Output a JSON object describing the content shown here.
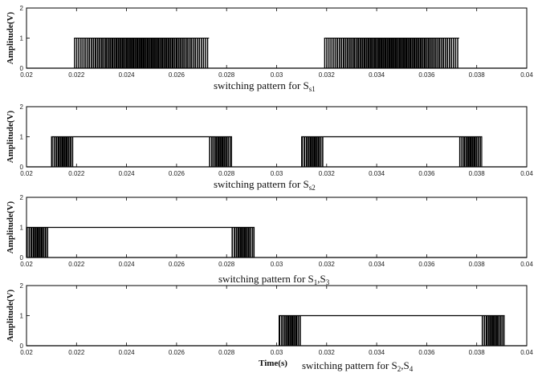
{
  "chart_data": [
    {
      "type": "line",
      "ylabel": "Amplitude(V)",
      "caption_main": "switching pattern for S",
      "caption_sub": "s1",
      "xlim": [
        0.02,
        0.04
      ],
      "ylim": [
        0,
        2
      ],
      "xticks": [
        "0.02",
        "0.022",
        "0.024",
        "0.026",
        "0.028",
        "0.03",
        "0.032",
        "0.034",
        "0.036",
        "0.038",
        "0.04"
      ],
      "yticks": [
        "0",
        "1",
        "2"
      ],
      "pulse_blocks": [
        [
          0.0219,
          0.0273
        ],
        [
          0.0319,
          0.0373
        ]
      ],
      "sustained_high": [],
      "high_level": 1
    },
    {
      "type": "line",
      "ylabel": "Amplitude(V)",
      "caption_main": "switching pattern for S",
      "caption_sub": "s2",
      "xlim": [
        0.02,
        0.04
      ],
      "ylim": [
        0,
        2
      ],
      "xticks": [
        "0.02",
        "0.022",
        "0.024",
        "0.026",
        "0.028",
        "0.03",
        "0.032",
        "0.034",
        "0.036",
        "0.038",
        "0.04"
      ],
      "yticks": [
        "0",
        "1",
        "2"
      ],
      "pulse_blocks": [
        [
          0.021,
          0.0219
        ],
        [
          0.0273,
          0.0282
        ],
        [
          0.031,
          0.0319
        ],
        [
          0.0373,
          0.0382
        ]
      ],
      "sustained_high": [
        [
          0.021,
          0.0282
        ],
        [
          0.031,
          0.0382
        ]
      ],
      "high_level": 1
    },
    {
      "type": "line",
      "ylabel": "Amplitude(V)",
      "caption_main": "switching pattern for S",
      "caption_sub": "1",
      "caption_main2": ",S",
      "caption_sub2": "3",
      "xlim": [
        0.02,
        0.04
      ],
      "ylim": [
        0,
        2
      ],
      "xticks": [
        "0.02",
        "0.022",
        "0.024",
        "0.026",
        "0.028",
        "0.03",
        "0.032",
        "0.034",
        "0.036",
        "0.038",
        "0.04"
      ],
      "yticks": [
        "0",
        "1",
        "2"
      ],
      "pulse_blocks": [
        [
          0.02,
          0.0209
        ],
        [
          0.0282,
          0.0291
        ]
      ],
      "sustained_high": [
        [
          0.02,
          0.0291
        ]
      ],
      "high_level": 1
    },
    {
      "type": "line",
      "ylabel": "Amplitude(V)",
      "xlabel": "Time(s)",
      "caption_main": "switching pattern for S",
      "caption_sub": "2",
      "caption_main2": ",S",
      "caption_sub2": "4",
      "xlim": [
        0.02,
        0.04
      ],
      "ylim": [
        0,
        2
      ],
      "xticks": [
        "0.02",
        "0.022",
        "0.024",
        "0.026",
        "0.028",
        "0.03",
        "0.032",
        "0.034",
        "0.036",
        "0.038",
        "0.04"
      ],
      "yticks": [
        "0",
        "1",
        "2"
      ],
      "pulse_blocks": [
        [
          0.0301,
          0.031
        ],
        [
          0.0382,
          0.0391
        ]
      ],
      "sustained_high": [
        [
          0.0301,
          0.0391
        ]
      ],
      "high_level": 1
    }
  ]
}
